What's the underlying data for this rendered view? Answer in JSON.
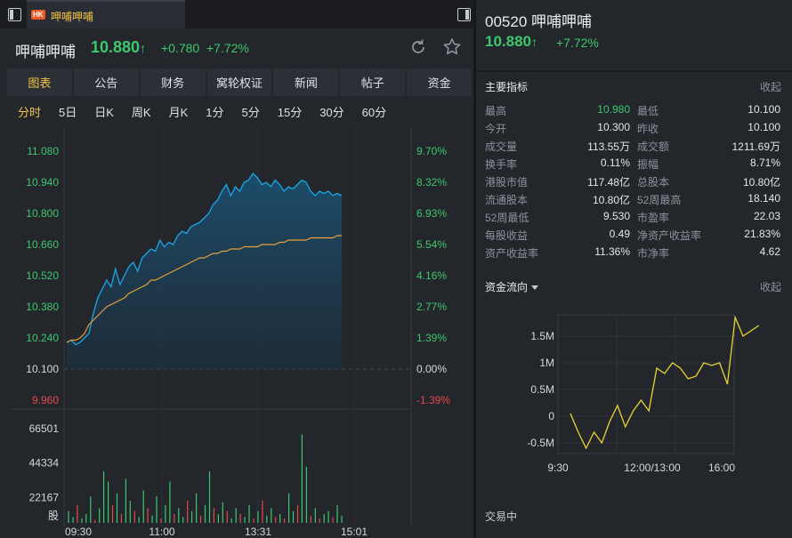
{
  "window": {
    "tab_badge": "HK",
    "tab_title": "呷哺呷哺"
  },
  "stock": {
    "name": "呷哺呷哺",
    "price": "10.880",
    "arrow": "↑",
    "change": "+0.780",
    "change_pct": "+7.72%"
  },
  "nav_tabs": [
    "图表",
    "公告",
    "财务",
    "窝轮权证",
    "新闻",
    "帖子",
    "资金"
  ],
  "periods": [
    "分时",
    "5日",
    "日K",
    "周K",
    "月K",
    "1分",
    "5分",
    "15分",
    "30分",
    "60分"
  ],
  "chart": {
    "price_levels": [
      "11.080",
      "10.940",
      "10.800",
      "10.660",
      "10.520",
      "10.380",
      "10.240",
      "10.100",
      "9.960"
    ],
    "pct_levels": [
      "9.70%",
      "8.32%",
      "6.93%",
      "5.54%",
      "4.16%",
      "2.77%",
      "1.39%",
      "0.00%",
      "-1.39%"
    ],
    "volume_levels": [
      "66501",
      "44334",
      "22167"
    ],
    "volume_unit": "股",
    "time_labels": [
      "09:30",
      "11:00",
      "13:31",
      "15:01"
    ],
    "colors": {
      "price_line": "#1aa7e6",
      "avg_line": "#e8a13b",
      "up": "#3ec86d",
      "down": "#e5484d"
    },
    "price_series": [
      10.22,
      10.23,
      10.21,
      10.22,
      10.24,
      10.26,
      10.35,
      10.42,
      10.46,
      10.5,
      10.47,
      10.55,
      10.48,
      10.52,
      10.56,
      10.58,
      10.54,
      10.6,
      10.62,
      10.64,
      10.63,
      10.68,
      10.65,
      10.67,
      10.66,
      10.7,
      10.72,
      10.71,
      10.74,
      10.75,
      10.76,
      10.78,
      10.8,
      10.84,
      10.86,
      10.9,
      10.93,
      10.88,
      10.92,
      10.9,
      10.94,
      10.95,
      10.98,
      10.96,
      10.93,
      10.94,
      10.92,
      10.95,
      10.93,
      10.9,
      10.92,
      10.91,
      10.93,
      10.95,
      10.94,
      10.9,
      10.88,
      10.9,
      10.89,
      10.9,
      10.88,
      10.89,
      10.88
    ],
    "avg_series": [
      10.22,
      10.23,
      10.23,
      10.24,
      10.26,
      10.3,
      10.32,
      10.34,
      10.36,
      10.38,
      10.39,
      10.4,
      10.41,
      10.42,
      10.44,
      10.45,
      10.46,
      10.47,
      10.48,
      10.5,
      10.5,
      10.51,
      10.52,
      10.53,
      10.54,
      10.55,
      10.56,
      10.57,
      10.58,
      10.59,
      10.6,
      10.6,
      10.61,
      10.62,
      10.62,
      10.63,
      10.63,
      10.64,
      10.64,
      10.64,
      10.65,
      10.65,
      10.65,
      10.65,
      10.66,
      10.66,
      10.66,
      10.66,
      10.67,
      10.67,
      10.68,
      10.68,
      10.68,
      10.68,
      10.68,
      10.69,
      10.69,
      10.69,
      10.69,
      10.69,
      10.69,
      10.7,
      10.7
    ],
    "volume_series": [
      8,
      4,
      12,
      3,
      6,
      18,
      2,
      10,
      35,
      28,
      12,
      20,
      6,
      30,
      15,
      8,
      4,
      22,
      10,
      5,
      18,
      3,
      12,
      28,
      6,
      10,
      4,
      15,
      8,
      20,
      5,
      12,
      35,
      10,
      6,
      14,
      8,
      3,
      10,
      6,
      4,
      12,
      3,
      8,
      15,
      5,
      10,
      4,
      6,
      3,
      20,
      8,
      12,
      60,
      38,
      5,
      10,
      3,
      6,
      8,
      4,
      12,
      5
    ],
    "volume_dir": [
      1,
      1,
      0,
      1,
      1,
      1,
      0,
      1,
      1,
      1,
      0,
      1,
      0,
      1,
      1,
      0,
      1,
      1,
      0,
      1,
      1,
      0,
      1,
      1,
      0,
      1,
      1,
      0,
      1,
      1,
      0,
      1,
      1,
      0,
      1,
      1,
      0,
      1,
      1,
      0,
      1,
      1,
      0,
      1,
      0,
      1,
      1,
      0,
      1,
      0,
      1,
      1,
      0,
      1,
      1,
      0,
      1,
      0,
      1,
      1,
      0,
      1,
      1
    ]
  },
  "right": {
    "code_name": "00520 呷哺呷哺",
    "price": "10.880",
    "arrow": "↑",
    "change_pct": "+7.72%",
    "metrics_title": "主要指标",
    "collapse": "收起",
    "metrics": [
      [
        "最高",
        "10.980",
        "最低",
        "10.100"
      ],
      [
        "今开",
        "10.300",
        "昨收",
        "10.100"
      ],
      [
        "成交量",
        "113.55万",
        "成交额",
        "1211.69万"
      ],
      [
        "换手率",
        "0.11%",
        "振幅",
        "8.71%"
      ],
      [
        "港股市值",
        "117.48亿",
        "总股本",
        "10.80亿"
      ],
      [
        "流通股本",
        "10.80亿",
        "52周最高",
        "18.140"
      ],
      [
        "52周最低",
        "9.530",
        "市盈率",
        "22.03"
      ],
      [
        "每股收益",
        "0.49",
        "净资产收益率",
        "21.83%"
      ],
      [
        "资产收益率",
        "11.36%",
        "市净率",
        "4.62"
      ]
    ],
    "flow_title": "资金流向",
    "flow_collapse": "收起",
    "flow_y": [
      "1.5M",
      "1M",
      "0.5M",
      "0",
      "-0.5M"
    ],
    "flow_x": [
      "9:30",
      "12:00/13:00",
      "16:00"
    ],
    "flow_series": [
      0.05,
      -0.3,
      -0.6,
      -0.3,
      -0.5,
      -0.1,
      0.2,
      -0.2,
      0.1,
      0.3,
      0.1,
      0.9,
      0.8,
      1.0,
      0.9,
      0.7,
      0.75,
      1.0,
      0.95,
      1.0,
      0.6,
      1.85,
      1.5,
      1.6,
      1.7
    ],
    "flow_color": "#e8d431",
    "trade_title": "交易中"
  }
}
